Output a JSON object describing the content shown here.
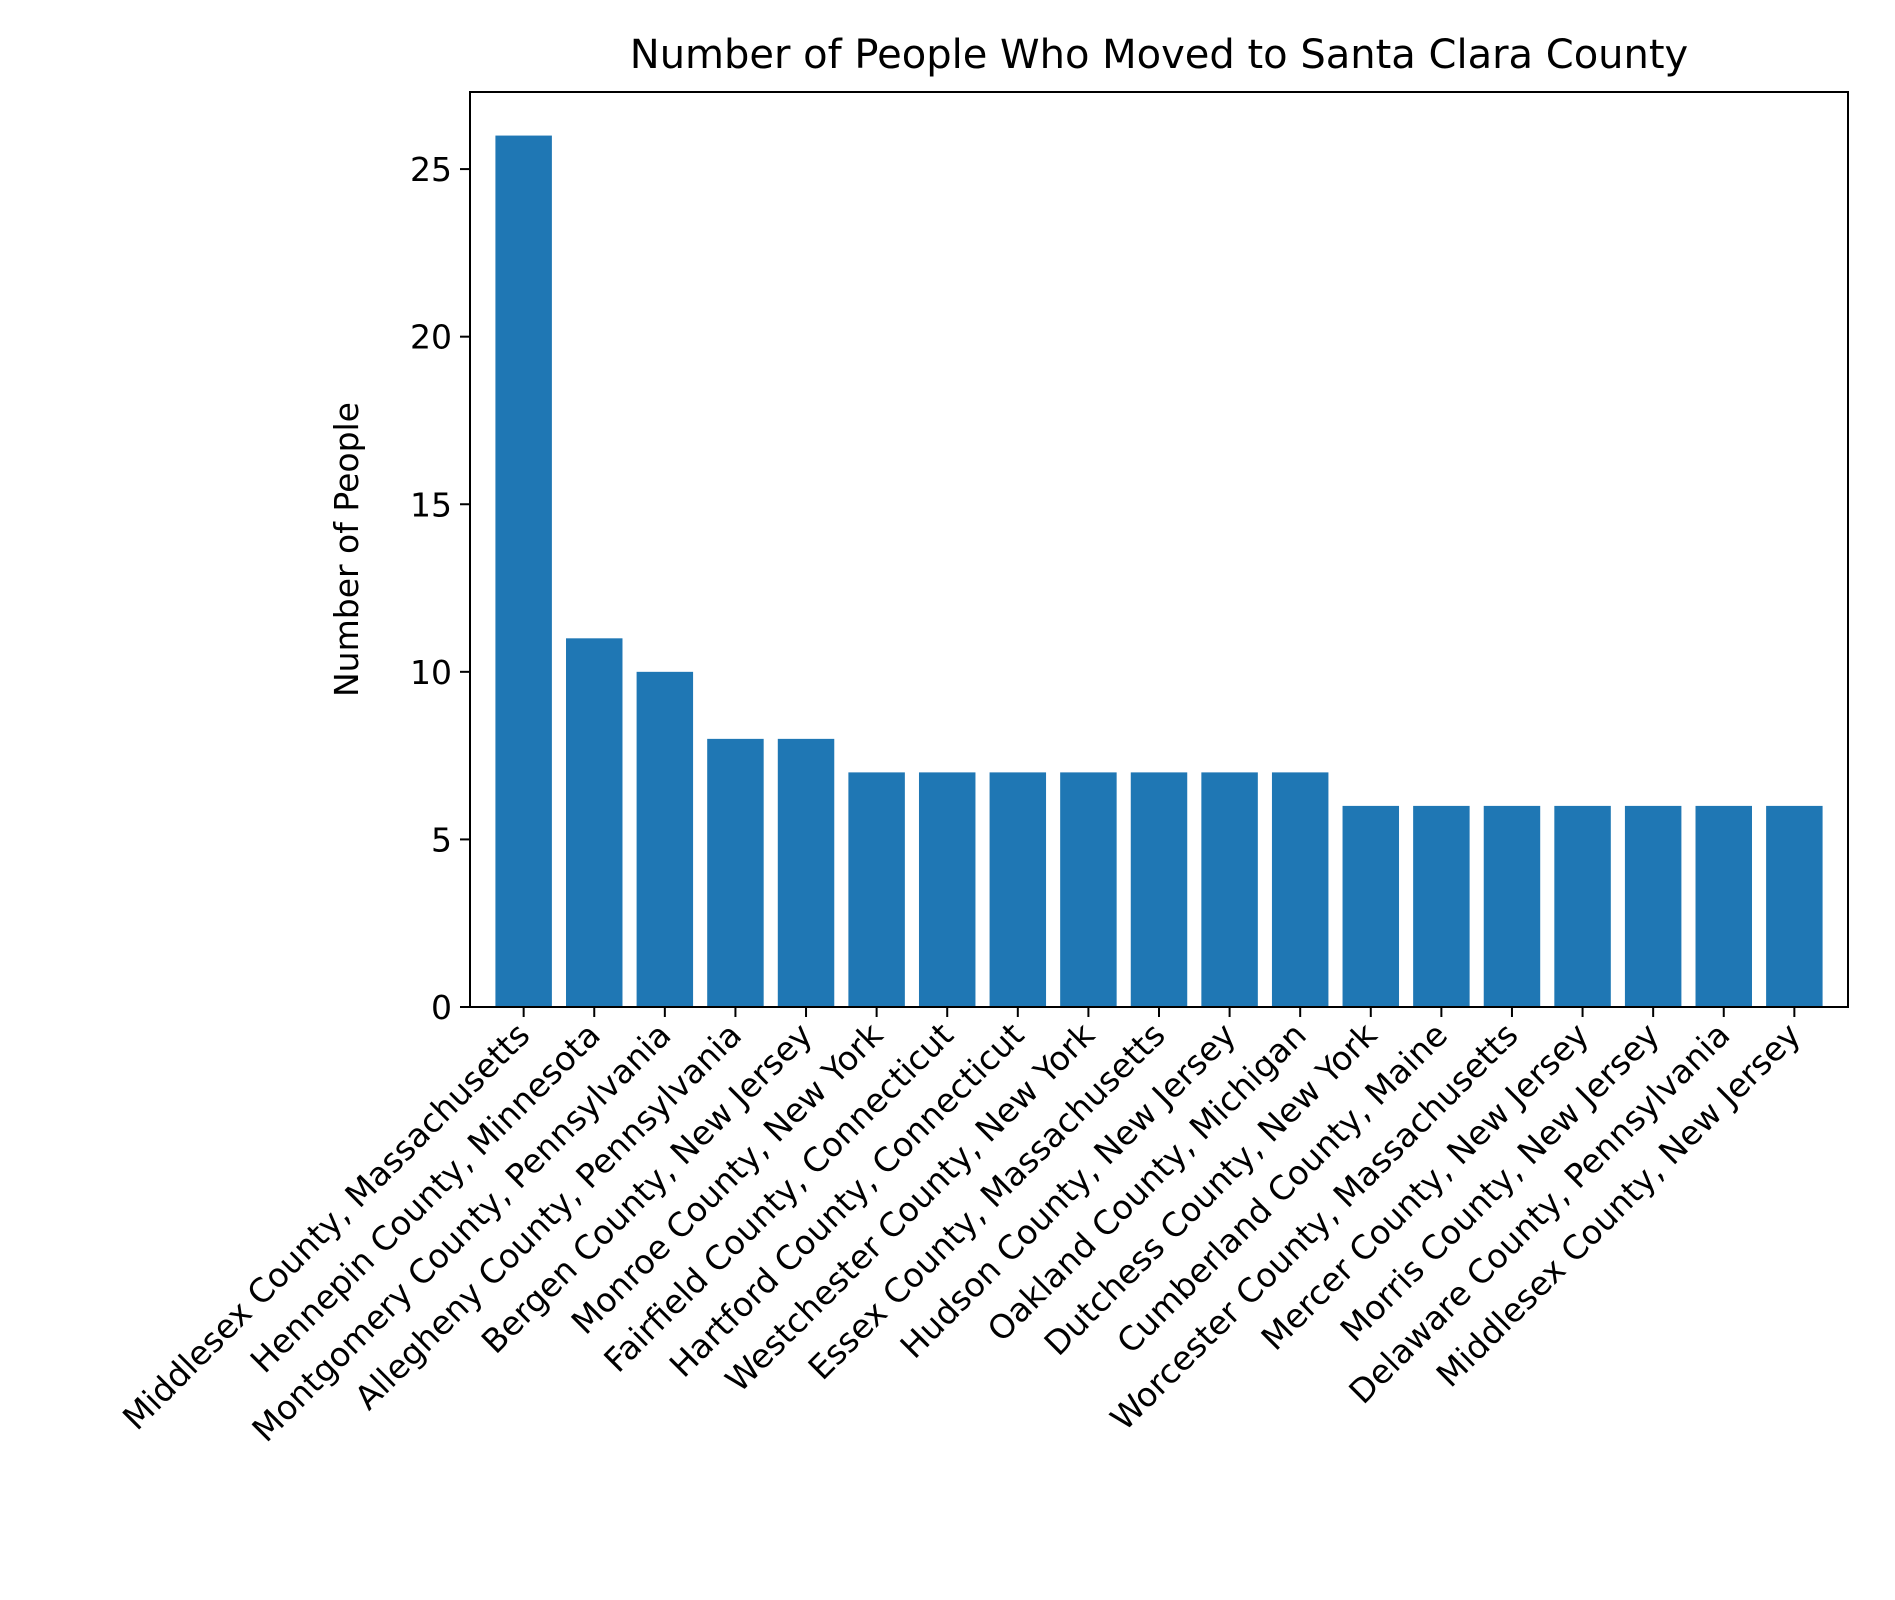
{
  "chart_data": {
    "type": "bar",
    "title": "Number of People Who Moved to Santa Clara County",
    "xlabel": "",
    "ylabel": "Number of People",
    "ylim": [
      0,
      27.3
    ],
    "yticks": [
      0,
      5,
      10,
      15,
      20,
      25
    ],
    "grid": false,
    "legend": "none",
    "bar_color": "#1f77b4",
    "categories": [
      "Middlesex County, Massachusetts",
      "Hennepin County, Minnesota",
      "Montgomery County, Pennsylvania",
      "Allegheny County, Pennsylvania",
      "Bergen County, New Jersey",
      "Monroe County, New York",
      "Fairfield County, Connecticut",
      "Hartford County, Connecticut",
      "Westchester County, New York",
      "Essex County, Massachusetts",
      "Hudson County, New Jersey",
      "Oakland County, Michigan",
      "Dutchess County, New York",
      "Cumberland County, Maine",
      "Worcester County, Massachusetts",
      "Mercer County, New Jersey",
      "Morris County, New Jersey",
      "Delaware County, Pennsylvania",
      "Middlesex County, New Jersey"
    ],
    "values": [
      26,
      11,
      10,
      8,
      8,
      7,
      7,
      7,
      7,
      7,
      7,
      7,
      6,
      6,
      6,
      6,
      6,
      6,
      6
    ]
  }
}
